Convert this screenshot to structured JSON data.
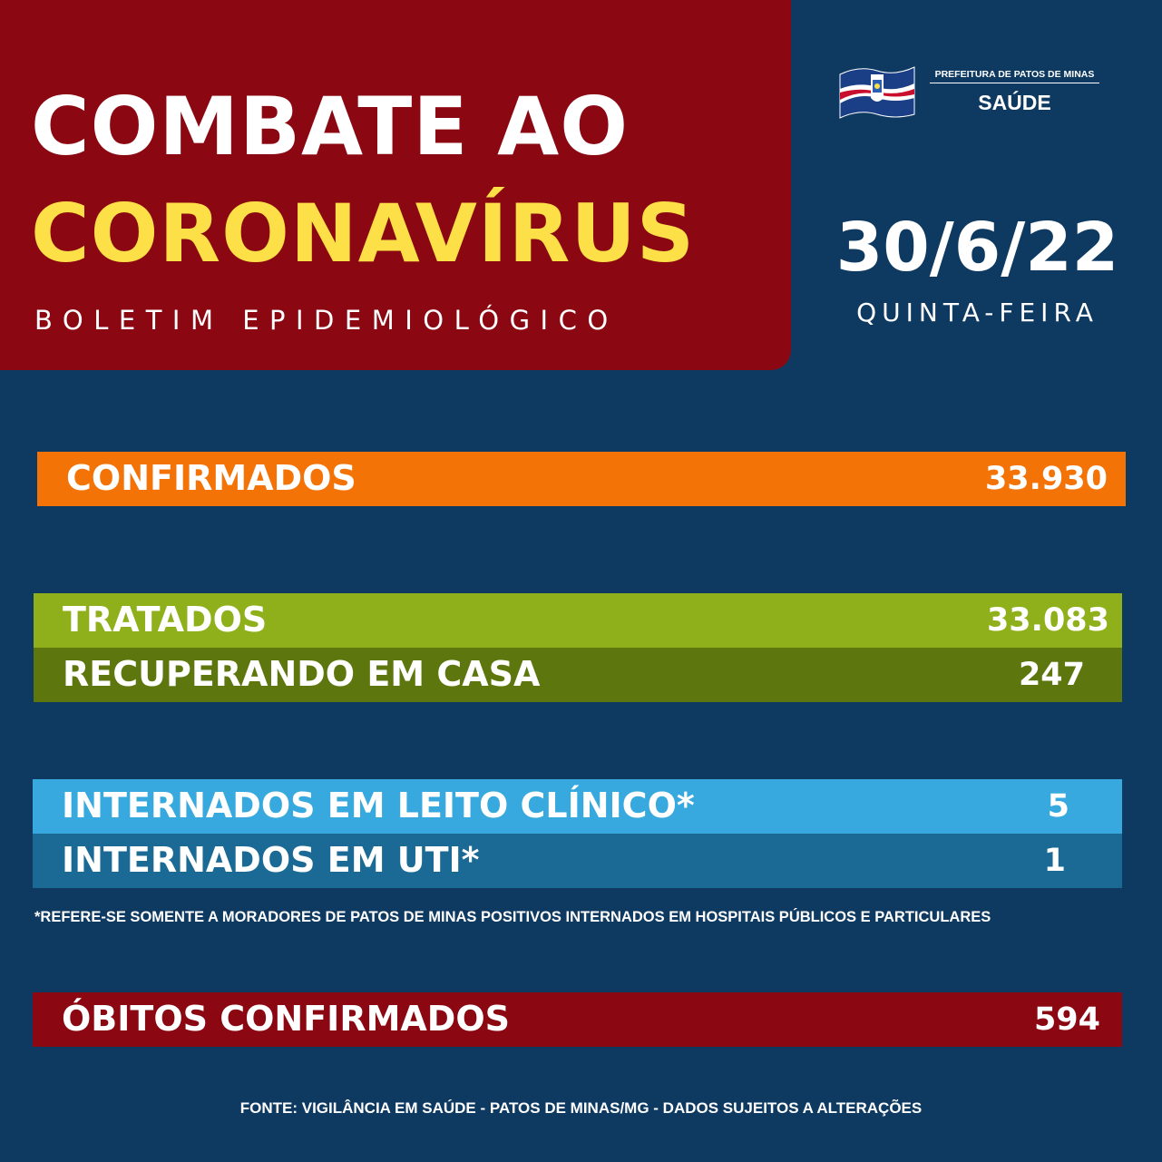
{
  "header": {
    "title_line1": "COMBATE AO",
    "title_line2": "CORONAVÍRUS",
    "subtitle": "BOLETIM EPIDEMIOLÓGICO",
    "title_bg_color": "#8b0812",
    "title_line2_color": "#fde047"
  },
  "logo": {
    "line1": "PREFEITURA DE PATOS DE MINAS",
    "line2": "SAÚDE",
    "icon": "municipal-flag-icon"
  },
  "date": {
    "value": "30/6/22",
    "weekday": "QUINTA-FEIRA"
  },
  "stats": {
    "confirmados": {
      "label": "CONFIRMADOS",
      "value": "33.930",
      "color": "#f47306"
    },
    "tratados": {
      "label": "TRATADOS",
      "value": "33.083",
      "color": "#8fb01a"
    },
    "recuperando": {
      "label": "RECUPERANDO EM CASA",
      "value": "247",
      "color": "#5e760e"
    },
    "leito_clinico": {
      "label": "INTERNADOS EM LEITO CLÍNICO*",
      "value": "5",
      "color": "#38a9de"
    },
    "uti": {
      "label": "INTERNADOS EM UTI*",
      "value": "1",
      "color": "#1a6a95"
    },
    "obitos": {
      "label": "ÓBITOS CONFIRMADOS",
      "value": "594",
      "color": "#8b0812"
    }
  },
  "note": "*REFERE-SE SOMENTE A MORADORES DE PATOS DE MINAS POSITIVOS INTERNADOS EM HOSPITAIS PÚBLICOS E PARTICULARES",
  "footer": "FONTE: VIGILÂNCIA EM SAÚDE - PATOS DE MINAS/MG - DADOS SUJEITOS A ALTERAÇÕES",
  "background_color": "#0e3a62"
}
